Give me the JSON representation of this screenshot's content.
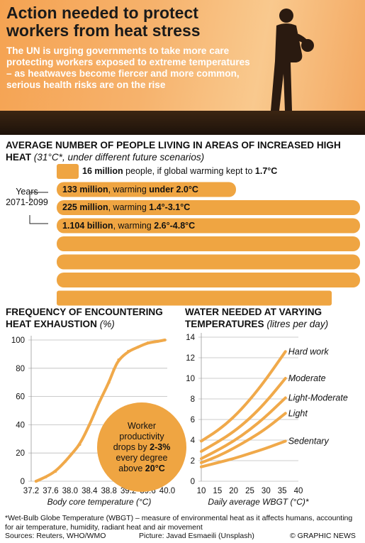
{
  "header": {
    "title": "Action needed to protect workers from heat stress",
    "intro": "The UN is urging governments to take more care protecting workers exposed to extreme temperatures – as heatwaves become fiercer and more common, serious health risks are on the rise"
  },
  "colors": {
    "accent": "#efa542",
    "hero_orange": "#f6b26c",
    "curve": "#f0a94a"
  },
  "population": {
    "title": "AVERAGE NUMBER OF PEOPLE LIVING IN AREAS OF INCREASED HIGH HEAT",
    "subtitle": "(31°C*, under different future scenarios)",
    "years_line1": "Years",
    "years_line2": "2071-2099",
    "items": [
      {
        "value_text": "16 million",
        "label_mid": "people, if global warming kept to",
        "label_scenario": "1.7°C",
        "value_millions": 16
      },
      {
        "value_text": "133 million",
        "label_mid": ", warming",
        "label_scenario": "under 2.0°C",
        "value_millions": 133
      },
      {
        "value_text": "225 million",
        "label_mid": ", warming",
        "label_scenario": "1.4°-3.1°C",
        "value_millions": 225
      },
      {
        "value_text": "1.104 billion",
        "label_mid": ", warming",
        "label_scenario": "2.6°-4.8°C",
        "value_millions": 1104
      }
    ]
  },
  "chart_data": [
    {
      "type": "line",
      "title": "FREQUENCY OF ENCOUNTERING HEAT EXHAUSTION",
      "title_unit": "(%)",
      "xlabel": "Body core temperature (°C)",
      "x_ticks": [
        "37.2",
        "37.6",
        "38.0",
        "38.4",
        "38.8",
        "39.2",
        "39.6",
        "40.0"
      ],
      "y_ticks": [
        "0",
        "20",
        "40",
        "60",
        "80",
        "100"
      ],
      "xlim": [
        37.2,
        40.0
      ],
      "ylim": [
        0,
        100
      ],
      "series": [
        {
          "x": [
            37.3,
            37.5,
            37.7,
            37.9,
            38.0,
            38.2,
            38.4,
            38.5,
            38.6,
            38.8,
            38.9,
            39.0,
            39.2,
            39.4,
            39.6,
            39.8,
            39.95
          ],
          "y": [
            0,
            3,
            7,
            14,
            18,
            26,
            40,
            48,
            56,
            70,
            79,
            86,
            92,
            95,
            98,
            99,
            100
          ]
        }
      ],
      "annotation": {
        "line1": "Worker",
        "line2": "productivity",
        "line3": "drops by",
        "highlight1": "2-3%",
        "line4": "every degree",
        "line5": "above",
        "highlight2": "20°C"
      }
    },
    {
      "type": "line",
      "title": "WATER NEEDED AT VARYING TEMPERATURES",
      "title_unit": "(litres per day)",
      "xlabel": "Daily average WBGT (°C)*",
      "x_ticks": [
        "10",
        "15",
        "20",
        "25",
        "30",
        "35",
        "40"
      ],
      "y_ticks": [
        "0",
        "2",
        "4",
        "6",
        "8",
        "10",
        "12",
        "14"
      ],
      "xlim": [
        10,
        40
      ],
      "ylim": [
        0,
        14
      ],
      "series": [
        {
          "name": "Hard work",
          "x": [
            10,
            15,
            20,
            25,
            30,
            36
          ],
          "y": [
            3.9,
            4.9,
            6.2,
            7.9,
            9.9,
            12.6
          ]
        },
        {
          "name": "Moderate",
          "x": [
            10,
            15,
            20,
            25,
            30,
            36
          ],
          "y": [
            2.9,
            3.8,
            4.8,
            6.1,
            7.7,
            10.0
          ]
        },
        {
          "name": "Light-Moderate",
          "x": [
            10,
            15,
            20,
            25,
            30,
            36
          ],
          "y": [
            2.2,
            3.0,
            3.9,
            5.0,
            6.3,
            8.1
          ]
        },
        {
          "name": "Light",
          "x": [
            10,
            15,
            20,
            25,
            30,
            36
          ],
          "y": [
            1.8,
            2.4,
            3.2,
            4.1,
            5.1,
            6.6
          ]
        },
        {
          "name": "Sedentary",
          "x": [
            10,
            15,
            20,
            25,
            30,
            36
          ],
          "y": [
            1.4,
            1.8,
            2.2,
            2.7,
            3.2,
            3.9
          ]
        }
      ]
    }
  ],
  "footer": {
    "footnote": "*Wet-Bulb Globe Temperature (WBGT) – measure of environmental heat as it affects humans, accounting for air temperature, humidity, radiant heat and air movement",
    "sources": "Sources: Reuters, WHO/WMO",
    "picture": "Picture: Javad Esmaeili (Unsplash)",
    "credit": "© GRAPHIC NEWS"
  }
}
